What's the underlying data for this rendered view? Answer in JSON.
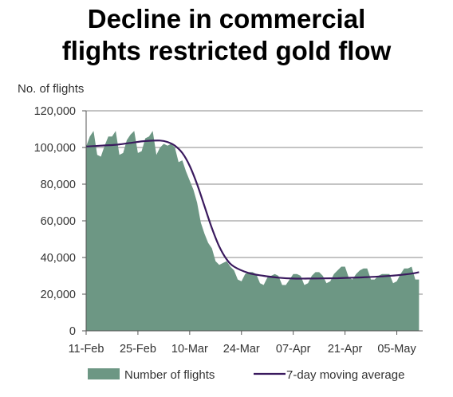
{
  "title_line1": "Decline in commercial",
  "title_line2": "flights restricted gold flow",
  "chart_data": {
    "type": "area",
    "ylabel": "No. of flights",
    "ylim": [
      0,
      120000
    ],
    "yticks": [
      0,
      20000,
      40000,
      60000,
      80000,
      100000,
      120000
    ],
    "ytick_labels": [
      "0",
      "20,000",
      "40,000",
      "60,000",
      "80,000",
      "100,000",
      "120,000"
    ],
    "xlim": [
      0,
      91
    ],
    "xticks": [
      0,
      14,
      28,
      42,
      56,
      70,
      84
    ],
    "xtick_labels": [
      "11-Feb",
      "25-Feb",
      "10-Mar",
      "24-Mar",
      "07-Apr",
      "21-Apr",
      "05-May"
    ],
    "grid": "horizontal",
    "legend_position": "bottom",
    "colors": {
      "area": "#6d9784",
      "line": "#3a1a5e",
      "grid": "#888888"
    },
    "series": [
      {
        "name": "Number of flights",
        "type": "area",
        "x": [
          0,
          1,
          2,
          3,
          4,
          5,
          6,
          7,
          8,
          9,
          10,
          11,
          12,
          13,
          14,
          15,
          16,
          17,
          18,
          19,
          20,
          21,
          22,
          23,
          24,
          25,
          26,
          27,
          28,
          29,
          30,
          31,
          32,
          33,
          34,
          35,
          36,
          37,
          38,
          39,
          40,
          41,
          42,
          43,
          44,
          45,
          46,
          47,
          48,
          49,
          50,
          51,
          52,
          53,
          54,
          55,
          56,
          57,
          58,
          59,
          60,
          61,
          62,
          63,
          64,
          65,
          66,
          67,
          68,
          69,
          70,
          71,
          72,
          73,
          74,
          75,
          76,
          77,
          78,
          79,
          80,
          81,
          82,
          83,
          84,
          85,
          86,
          87,
          88,
          89,
          90
        ],
        "values": [
          100500,
          106000,
          109000,
          96000,
          95000,
          101000,
          106000,
          106000,
          109000,
          96000,
          97000,
          104000,
          107000,
          109000,
          97000,
          98000,
          105000,
          106000,
          109000,
          96000,
          100000,
          102000,
          101000,
          102000,
          100000,
          92000,
          93000,
          87000,
          82000,
          77000,
          70000,
          59000,
          53000,
          48000,
          45000,
          38000,
          36000,
          37000,
          38000,
          35000,
          33000,
          28000,
          27000,
          31000,
          32000,
          32000,
          31000,
          26000,
          25000,
          29000,
          30000,
          31000,
          30000,
          25000,
          25000,
          28000,
          31000,
          31000,
          30000,
          25000,
          26000,
          30000,
          32000,
          32000,
          30000,
          26000,
          27000,
          31000,
          33000,
          35000,
          35000,
          29000,
          28000,
          31000,
          33000,
          34000,
          34000,
          28000,
          28000,
          30000,
          31000,
          31000,
          31000,
          26000,
          27000,
          31000,
          34000,
          34000,
          35000,
          28000,
          28000
        ],
        "x_values_note_removed": true
      },
      {
        "name": "7-day moving average",
        "type": "line",
        "x": [
          0,
          4,
          8,
          12,
          16,
          20,
          22,
          24,
          26,
          28,
          30,
          32,
          34,
          36,
          38,
          40,
          44,
          48,
          52,
          56,
          60,
          64,
          68,
          72,
          76,
          80,
          84,
          88,
          90
        ],
        "values": [
          100500,
          101000,
          101500,
          102500,
          103500,
          103800,
          103000,
          101000,
          97000,
          90000,
          80000,
          68000,
          56000,
          46000,
          39000,
          35000,
          31500,
          30000,
          29000,
          28500,
          28500,
          28600,
          28700,
          29000,
          29300,
          29700,
          30300,
          31200,
          32000
        ]
      }
    ]
  }
}
